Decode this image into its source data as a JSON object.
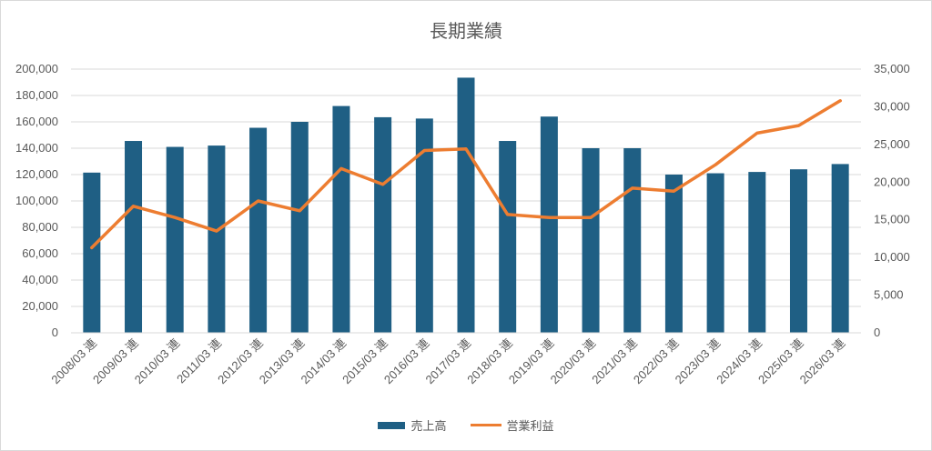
{
  "chart_data": {
    "type": "bar",
    "title": "長期業績",
    "categories": [
      "2008/03 連",
      "2009/03 連",
      "2010/03 連",
      "2011/03 連",
      "2012/03 連",
      "2013/03 連",
      "2014/03 連",
      "2015/03 連",
      "2016/03 連",
      "2017/03 連",
      "2018/03 連",
      "2019/03 連",
      "2020/03 連",
      "2021/03 連",
      "2022/03 連",
      "2023/03 連",
      "2024/03 連",
      "2025/03 連",
      "2026/03 連"
    ],
    "series": [
      {
        "name": "売上高",
        "type": "bar",
        "axis": "left",
        "color": "#1f5f84",
        "values": [
          121500,
          145500,
          141000,
          142000,
          155500,
          160000,
          172000,
          163500,
          162500,
          193500,
          145500,
          164000,
          140000,
          140000,
          120000,
          121000,
          122000,
          124000,
          128000
        ]
      },
      {
        "name": "営業利益",
        "type": "line",
        "axis": "right",
        "color": "#ed7d31",
        "values": [
          11300,
          16800,
          15300,
          13500,
          17500,
          16200,
          21800,
          19700,
          24200,
          24400,
          15700,
          15300,
          15300,
          19200,
          18800,
          22300,
          26500,
          27500,
          30800
        ]
      }
    ],
    "y_left": {
      "min": 0,
      "max": 200000,
      "ticks": [
        "0",
        "20,000",
        "40,000",
        "60,000",
        "80,000",
        "100,000",
        "120,000",
        "140,000",
        "160,000",
        "180,000",
        "200,000"
      ]
    },
    "y_right": {
      "min": 0,
      "max": 35000,
      "ticks": [
        "0",
        "5,000",
        "10,000",
        "15,000",
        "20,000",
        "25,000",
        "30,000",
        "35,000"
      ]
    },
    "grid": true,
    "legend": "bottom"
  }
}
